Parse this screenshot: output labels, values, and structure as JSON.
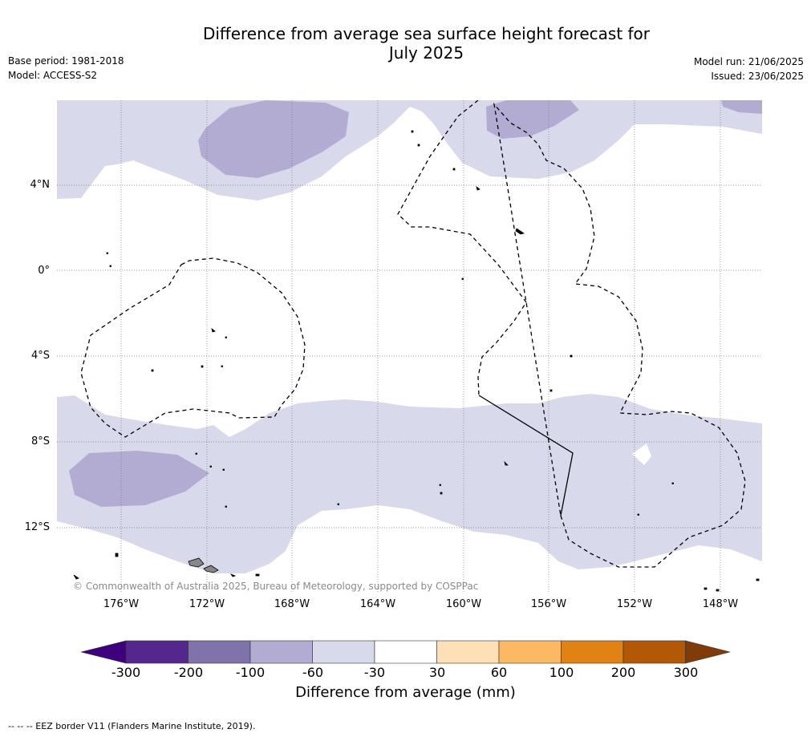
{
  "title_line1": "Difference from average sea surface height forecast for",
  "title_line2": "July 2025",
  "base_period": "Base period: 1981-2018",
  "model": "Model: ACCESS-S2",
  "model_run": "Model run: 21/06/2025",
  "issued": "Issued: 23/06/2025",
  "copyright": "© Commonwealth of Australia 2025, Bureau of Meteorology, supported by COSPPac",
  "lat_labels": [
    "4°N",
    "0°",
    "4°S",
    "8°S",
    "12°S"
  ],
  "lon_labels": [
    "176°W",
    "172°W",
    "168°W",
    "164°W",
    "160°W",
    "156°W",
    "152°W",
    "148°W"
  ],
  "colorbar": {
    "ticks": [
      "-300",
      "-200",
      "-100",
      "-60",
      "-30",
      "30",
      "60",
      "100",
      "200",
      "300"
    ],
    "colors": [
      "#3f007d",
      "#54278f",
      "#8073ac",
      "#b2abd2",
      "#d8daeb",
      "#ffffff",
      "#fee0b6",
      "#fdb863",
      "#e08214",
      "#b35806",
      "#7f3b08"
    ],
    "label": "Difference from average (mm)"
  },
  "footnote": "-- --  -- EEZ border V11 (Flanders Marine Institute, 2019).",
  "colors": {
    "light_purple": "#d8daeb",
    "mid_purple": "#b2abd2",
    "island_gray": "#888888"
  }
}
